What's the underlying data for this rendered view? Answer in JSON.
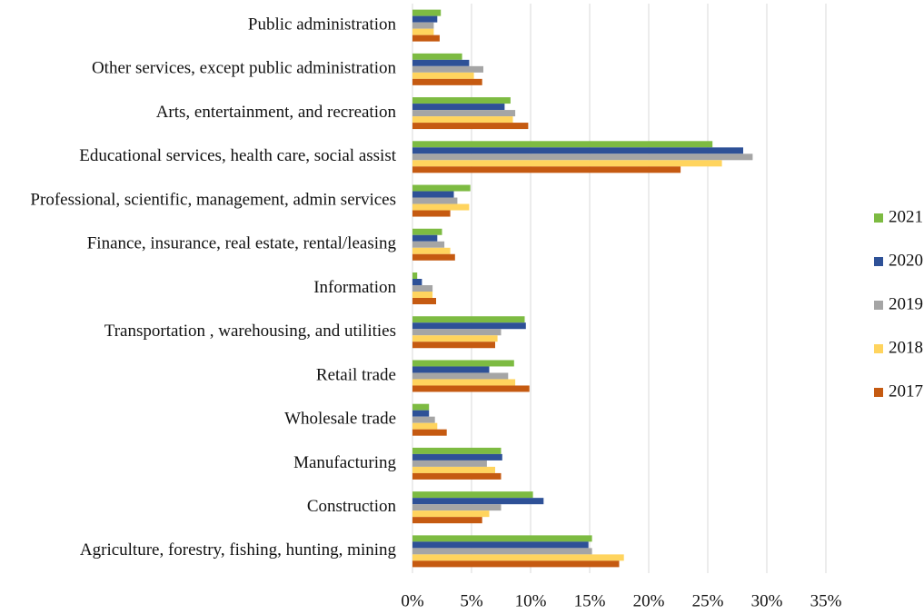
{
  "chart_data": {
    "type": "hbar",
    "categories": [
      "Public administration",
      "Other services, except public administration",
      "Arts, entertainment, and recreation",
      "Educational services, health care, social assist",
      "Professional, scientific, management, admin services",
      "Finance, insurance, real estate, rental/leasing",
      "Information",
      "Transportation , warehousing, and utilities",
      "Retail trade",
      "Wholesale trade",
      "Manufacturing",
      "Construction",
      "Agriculture, forestry, fishing, hunting, mining"
    ],
    "series": [
      {
        "name": "2021",
        "color": "#7dbb42",
        "values": [
          2.4,
          4.2,
          8.3,
          25.4,
          4.9,
          2.5,
          0.4,
          9.5,
          8.6,
          1.4,
          7.5,
          10.2,
          15.2
        ]
      },
      {
        "name": "2020",
        "color": "#2e5197",
        "values": [
          2.1,
          4.8,
          7.8,
          28.0,
          3.5,
          2.1,
          0.8,
          9.6,
          6.5,
          1.4,
          7.6,
          11.1,
          14.9
        ]
      },
      {
        "name": "2019",
        "color": "#a5a5a5",
        "values": [
          1.8,
          6.0,
          8.7,
          28.8,
          3.8,
          2.7,
          1.7,
          7.5,
          8.1,
          1.9,
          6.3,
          7.5,
          15.2
        ]
      },
      {
        "name": "2018",
        "color": "#ffd45e",
        "values": [
          1.8,
          5.2,
          8.5,
          26.2,
          4.8,
          3.2,
          1.7,
          7.2,
          8.7,
          2.1,
          7.0,
          6.5,
          17.9
        ]
      },
      {
        "name": "2017",
        "color": "#c55a11",
        "values": [
          2.3,
          5.9,
          9.8,
          22.7,
          3.2,
          3.6,
          2.0,
          7.0,
          9.9,
          2.9,
          7.5,
          5.9,
          17.5
        ]
      }
    ],
    "xlim": [
      0,
      35
    ],
    "xticks": [
      {
        "value": 0,
        "label": "0%"
      },
      {
        "value": 5,
        "label": "5%"
      },
      {
        "value": 10,
        "label": "10%"
      },
      {
        "value": 15,
        "label": "15%"
      },
      {
        "value": 20,
        "label": "20%"
      },
      {
        "value": 25,
        "label": "25%"
      },
      {
        "value": 30,
        "label": "30%"
      },
      {
        "value": 35,
        "label": "35%"
      }
    ],
    "grid": true,
    "legend": "right"
  }
}
